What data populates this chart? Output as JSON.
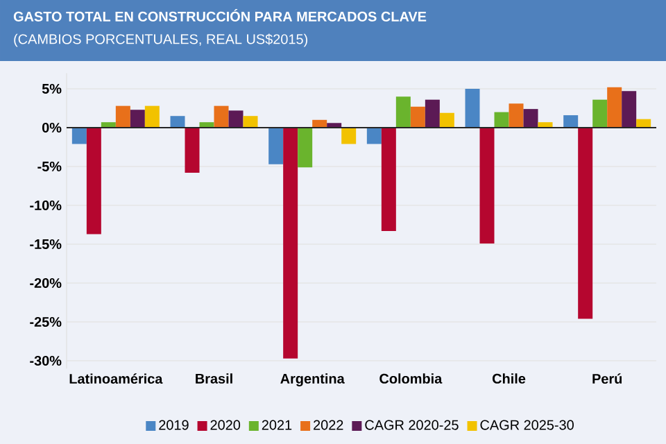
{
  "chart_data": {
    "type": "bar",
    "title": "GASTO TOTAL EN CONSTRUCCIÓN PARA MERCADOS CLAVE",
    "subtitle": "(CAMBIOS PORCENTUALES, REAL US$2015)",
    "categories": [
      "Latinoamérica",
      "Brasil",
      "Argentina",
      "Colombia",
      "Chile",
      "Perú"
    ],
    "series": [
      {
        "name": "2019",
        "color": "#4a86c5",
        "values": [
          -2.1,
          1.5,
          -4.7,
          -2.1,
          5.0,
          1.6
        ]
      },
      {
        "name": "2020",
        "color": "#b5062f",
        "values": [
          -13.7,
          -5.8,
          -29.7,
          -13.3,
          -14.9,
          -24.6
        ]
      },
      {
        "name": "2021",
        "color": "#6ab42d",
        "values": [
          0.7,
          0.7,
          -5.1,
          4.0,
          2.0,
          3.6
        ]
      },
      {
        "name": "2022",
        "color": "#e8701a",
        "values": [
          2.8,
          2.8,
          1.0,
          2.7,
          3.1,
          5.2
        ]
      },
      {
        "name": "CAGR 2020-25",
        "color": "#5c1a55",
        "values": [
          2.3,
          2.2,
          0.6,
          3.6,
          2.4,
          4.7
        ]
      },
      {
        "name": "CAGR 2025-30",
        "color": "#f2c200",
        "values": [
          2.8,
          1.5,
          -2.1,
          1.9,
          0.7,
          1.1
        ]
      }
    ],
    "ylim": [
      -31,
      7
    ],
    "yticks": [
      {
        "value": 5,
        "label": "5%"
      },
      {
        "value": 0,
        "label": "0%"
      },
      {
        "value": -5,
        "label": "-5%"
      },
      {
        "value": -10,
        "label": "-10%"
      },
      {
        "value": -15,
        "label": "-15%"
      },
      {
        "value": -20,
        "label": "-20%"
      },
      {
        "value": -25,
        "label": "-25%"
      },
      {
        "value": -30,
        "label": "-30%"
      }
    ],
    "grid": "y",
    "legend": "bottom"
  }
}
